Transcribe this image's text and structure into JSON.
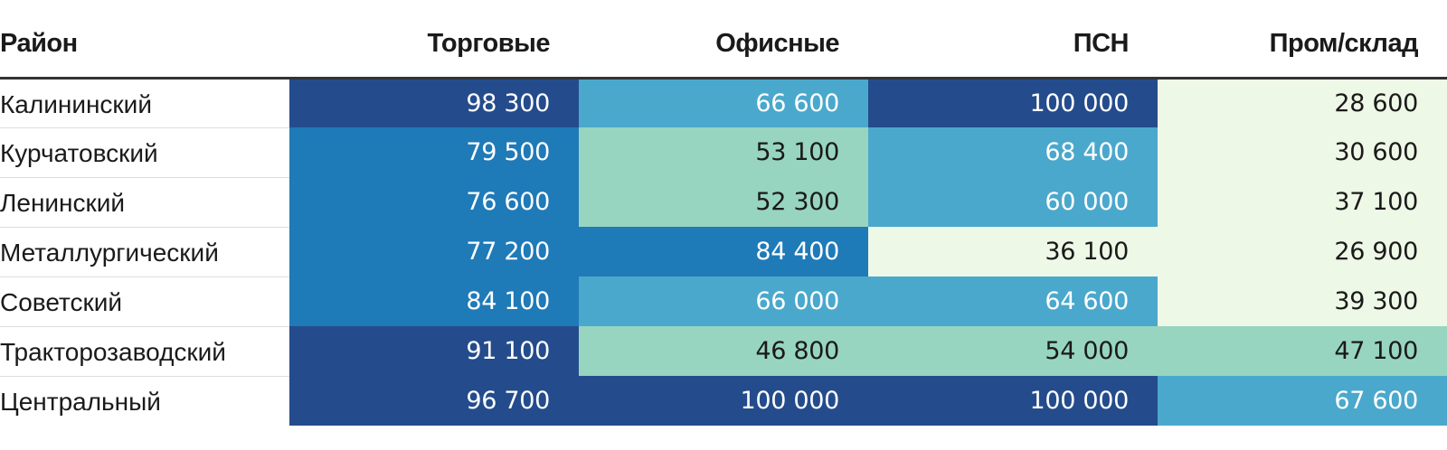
{
  "chart_data": {
    "type": "table",
    "columns": [
      "Район",
      "Торговые",
      "Офисные",
      "ПСН",
      "Пром/склад"
    ],
    "rows": [
      {
        "district": "Калининский",
        "values": [
          "98 300",
          "66 600",
          "100 000",
          "28 600"
        ]
      },
      {
        "district": "Курчатовский",
        "values": [
          "79 500",
          "53 100",
          "68 400",
          "30 600"
        ]
      },
      {
        "district": "Ленинский",
        "values": [
          "76 600",
          "52 300",
          "60 000",
          "37 100"
        ]
      },
      {
        "district": "Металлургический",
        "values": [
          "77 200",
          "84 400",
          "36 100",
          "26 900"
        ]
      },
      {
        "district": "Советский",
        "values": [
          "84 100",
          "66 000",
          "64 600",
          "39 300"
        ]
      },
      {
        "district": "Тракторозаводский",
        "values": [
          "91 100",
          "46 800",
          "54 000",
          "47 100"
        ]
      },
      {
        "district": "Центральный",
        "values": [
          "96 700",
          "100 000",
          "100 000",
          "67 600"
        ]
      }
    ],
    "numeric_values": [
      [
        98300,
        66600,
        100000,
        28600
      ],
      [
        79500,
        53100,
        68400,
        30600
      ],
      [
        76600,
        52300,
        60000,
        37100
      ],
      [
        77200,
        84400,
        36100,
        26900
      ],
      [
        84100,
        66000,
        64600,
        39300
      ],
      [
        91100,
        46800,
        54000,
        47100
      ],
      [
        96700,
        100000,
        100000,
        67600
      ]
    ],
    "color_scale": [
      {
        "max": 40000,
        "bg": "#eef8e6",
        "fg": "#1a1a1a"
      },
      {
        "max": 55000,
        "bg": "#97d5c0",
        "fg": "#1a1a1a"
      },
      {
        "max": 70000,
        "bg": "#4aa8cc",
        "fg": "#ffffff"
      },
      {
        "max": 90000,
        "bg": "#1f7ab8",
        "fg": "#ffffff"
      },
      {
        "max": 100000,
        "bg": "#244c8c",
        "fg": "#ffffff"
      }
    ]
  }
}
